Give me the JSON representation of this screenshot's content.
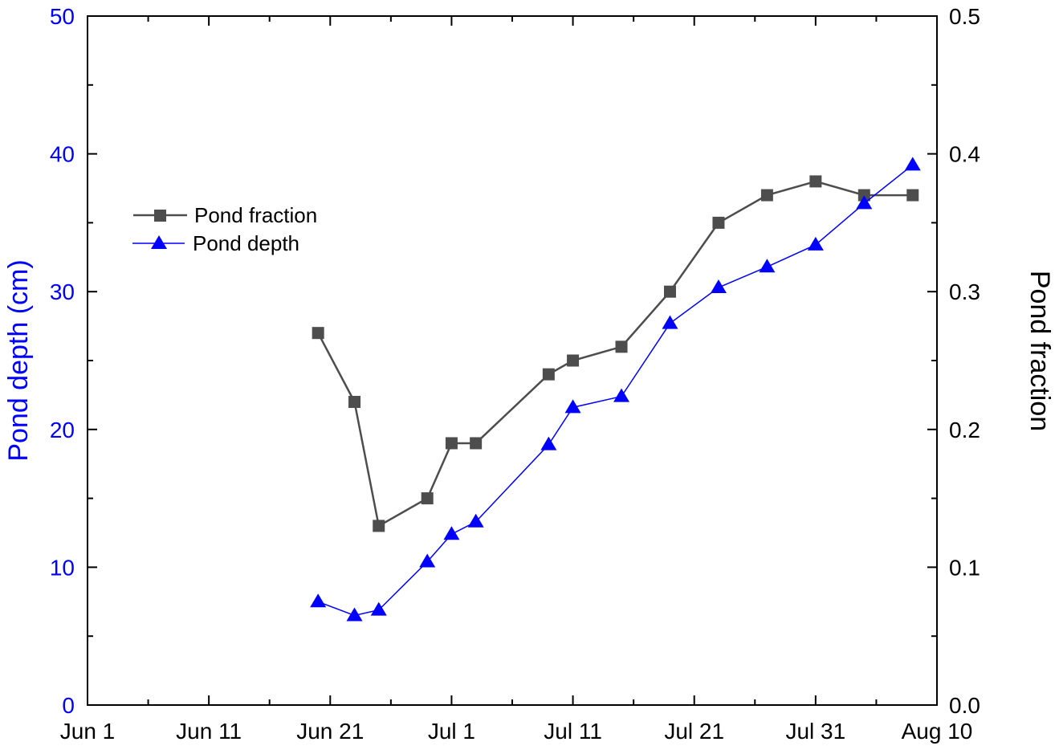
{
  "chart_data": {
    "type": "line",
    "title": "",
    "xlabel": "",
    "ylabel_left": "Pond depth (cm)",
    "ylabel_right": "Pond fraction",
    "xlim": [
      "Jun 1",
      "Aug 10"
    ],
    "ylim_left": [
      0,
      50
    ],
    "ylim_right": [
      0,
      0.5
    ],
    "x_ticks": [
      "Jun 1",
      "Jun 11",
      "Jun 21",
      "Jul 1",
      "Jul 11",
      "Jul 21",
      "Jul 31",
      "Aug 10"
    ],
    "y_ticks_left": [
      "0",
      "10",
      "20",
      "30",
      "40",
      "50"
    ],
    "y_ticks_right": [
      "0.0",
      "0.1",
      "0.2",
      "0.3",
      "0.4",
      "0.5"
    ],
    "grid": false,
    "legend_position": "upper-left",
    "colors": {
      "left_axis": "#0000ff",
      "right_axis": "#000000"
    },
    "x": [
      "Jun 20",
      "Jun 23",
      "Jun 25",
      "Jun 29",
      "Jul 1",
      "Jul 3",
      "Jul 9",
      "Jul 11",
      "Jul 15",
      "Jul 19",
      "Jul 23",
      "Jul 27",
      "Jul 31",
      "Aug 4",
      "Aug 8"
    ],
    "series": [
      {
        "name": "Pond fraction",
        "axis": "right",
        "color": "#4d4d4d",
        "marker": "square",
        "values": [
          0.27,
          0.22,
          0.13,
          0.15,
          0.19,
          0.19,
          0.24,
          0.25,
          0.26,
          0.3,
          0.35,
          0.37,
          0.38,
          0.37,
          0.37
        ]
      },
      {
        "name": "Pond depth",
        "axis": "left",
        "color": "#0000ff",
        "marker": "triangle",
        "values": [
          7.5,
          6.5,
          6.9,
          10.4,
          12.4,
          13.3,
          18.9,
          21.6,
          22.4,
          27.7,
          30.3,
          31.8,
          33.4,
          36.4,
          39.2
        ]
      }
    ]
  }
}
